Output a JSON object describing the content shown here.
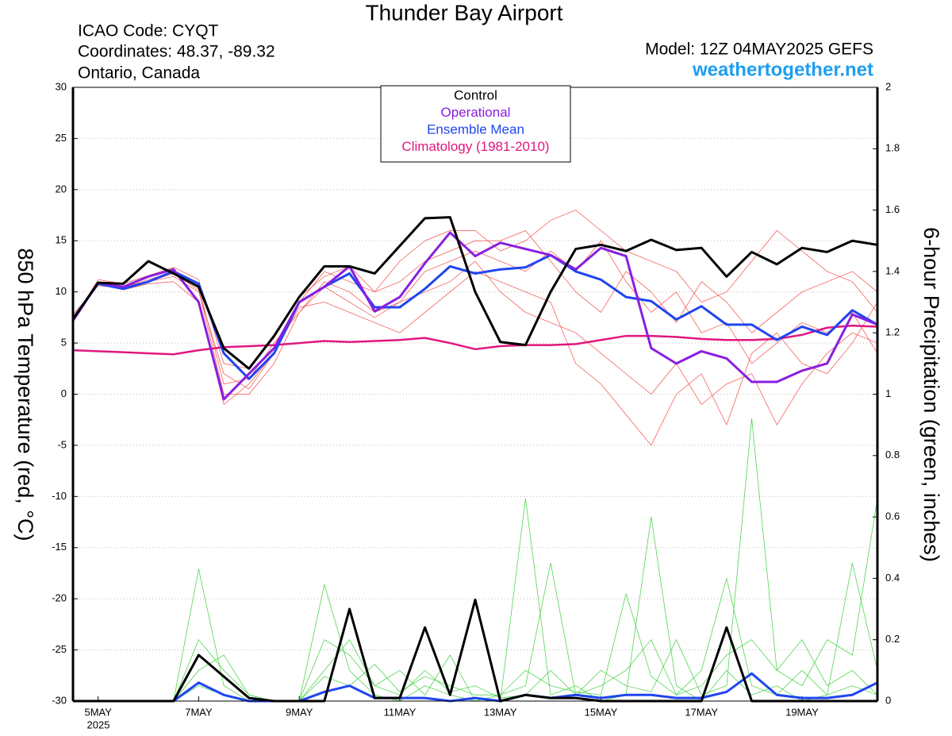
{
  "chart_data": {
    "type": "line",
    "title": "Thunder Bay Airport",
    "info": [
      "ICAO Code: CYQT",
      "Coordinates: 48.37, -89.32",
      "Ontario, Canada"
    ],
    "model": "Model: 12Z 04MAY2025 GEFS",
    "site": "weathertogether.net",
    "ylabel": "850 hPa Temperature (red, °C)",
    "y2label": "6-hour Precipitation (green, inches)",
    "year": "2025",
    "grid": true,
    "legend": "top",
    "xlim": [
      0,
      384
    ],
    "xticks": [
      {
        "value": 12,
        "label": "5MAY"
      },
      {
        "value": 60,
        "label": "7MAY"
      },
      {
        "value": 108,
        "label": "9MAY"
      },
      {
        "value": 156,
        "label": "11MAY"
      },
      {
        "value": 204,
        "label": "13MAY"
      },
      {
        "value": 252,
        "label": "15MAY"
      },
      {
        "value": 300,
        "label": "17MAY"
      },
      {
        "value": 348,
        "label": "19MAY"
      }
    ],
    "ylim": [
      -30,
      30
    ],
    "yticks": [
      30,
      25,
      20,
      15,
      10,
      5,
      0,
      -5,
      -10,
      -15,
      -20,
      -25,
      -30
    ],
    "y2lim": [
      0,
      2
    ],
    "y2ticks": [
      2,
      1.8,
      1.6,
      1.4,
      1.2,
      1,
      0.8,
      0.6,
      0.4,
      0.2,
      0
    ],
    "x": [
      0,
      12,
      24,
      36,
      48,
      60,
      72,
      84,
      96,
      108,
      120,
      132,
      144,
      156,
      168,
      180,
      192,
      204,
      216,
      228,
      240,
      252,
      264,
      276,
      288,
      300,
      312,
      324,
      336,
      348,
      360,
      372,
      384
    ],
    "series": [
      {
        "color": "#f0504a",
        "width": 0.7,
        "values": [
          7.5,
          11,
          10.5,
          11,
          11.5,
          10,
          2,
          0.5,
          4,
          9,
          12,
          11,
          10,
          13,
          15,
          16,
          16,
          14,
          15,
          17,
          18,
          16,
          14,
          13,
          12,
          9,
          10,
          13,
          16,
          14,
          12,
          11,
          8
        ]
      },
      {
        "color": "#f0504a",
        "width": 0.7,
        "values": [
          7.5,
          11,
          10.2,
          10.8,
          11,
          9,
          -1,
          1,
          4,
          8.5,
          9,
          8,
          7,
          6,
          8,
          10,
          12,
          11,
          10,
          9,
          3,
          1,
          -2,
          -5,
          0,
          2,
          -3,
          4,
          6,
          3,
          2,
          5,
          9
        ]
      },
      {
        "color": "#f0504a",
        "width": 0.7,
        "values": [
          7.8,
          10.6,
          10.4,
          11.2,
          12,
          10.5,
          1,
          1.5,
          5,
          8,
          11,
          10,
          8,
          9,
          12,
          13,
          14,
          13,
          12,
          14,
          12,
          15,
          11,
          8,
          10,
          6,
          7,
          3,
          5,
          7,
          6,
          8,
          4
        ]
      },
      {
        "color": "#f0504a",
        "width": 0.7,
        "values": [
          7.2,
          11.2,
          10.8,
          11.6,
          12.4,
          11.2,
          3,
          2.5,
          5.5,
          9.5,
          11.5,
          12.5,
          10,
          11,
          13,
          14,
          15,
          15,
          16,
          13,
          10,
          8,
          12,
          10,
          7,
          11,
          9,
          6,
          8,
          10,
          11,
          12,
          10
        ]
      },
      {
        "color": "#f0504a",
        "width": 0.7,
        "values": [
          7.6,
          10.8,
          10.6,
          11,
          11.8,
          10.2,
          0,
          0,
          3,
          8,
          10.5,
          9,
          7.5,
          9,
          10,
          11,
          13,
          10,
          8,
          7,
          6,
          4,
          2,
          0,
          3,
          -1,
          1,
          2,
          -3,
          1,
          4,
          6,
          5
        ]
      },
      {
        "color": "#3ccf3c",
        "width": 0.7,
        "axis": "y2",
        "values": [
          0,
          0,
          0,
          0,
          0,
          0.43,
          0.05,
          0,
          0,
          0,
          0.38,
          0.1,
          0.02,
          0,
          0.05,
          0.02,
          0,
          0,
          0.66,
          0.02,
          0.05,
          0,
          0.02,
          0.6,
          0.05,
          0,
          0.1,
          0.02,
          0.05,
          0,
          0.02,
          0.05,
          0.02
        ]
      },
      {
        "color": "#3ccf3c",
        "width": 0.7,
        "axis": "y2",
        "values": [
          0,
          0,
          0,
          0,
          0,
          0.2,
          0.1,
          0.02,
          0,
          0,
          0.2,
          0.15,
          0.05,
          0.1,
          0.02,
          0.15,
          0,
          0.02,
          0.05,
          0.45,
          0.02,
          0.1,
          0.05,
          0.03,
          0.2,
          0.02,
          0.05,
          0.92,
          0.1,
          0.2,
          0.05,
          0.1,
          0.02
        ]
      },
      {
        "color": "#3ccf3c",
        "width": 0.7,
        "axis": "y2",
        "values": [
          0,
          0,
          0,
          0,
          0,
          0.1,
          0.15,
          0.02,
          0,
          0,
          0.08,
          0.05,
          0.12,
          0.03,
          0.08,
          0.05,
          0.02,
          0.02,
          0.1,
          0.05,
          0.03,
          0.02,
          0.35,
          0.08,
          0.02,
          0.1,
          0.4,
          0.05,
          0.02,
          0.1,
          0.02,
          0.45,
          0.1
        ]
      },
      {
        "color": "#3ccf3c",
        "width": 0.7,
        "axis": "y2",
        "values": [
          0,
          0,
          0,
          0,
          0,
          0.05,
          0.02,
          0,
          0,
          0,
          0.1,
          0.2,
          0.05,
          0.02,
          0.1,
          0.03,
          0.05,
          0.01,
          0.02,
          0.1,
          0.02,
          0.05,
          0.1,
          0.2,
          0.02,
          0.05,
          0.15,
          0.2,
          0.1,
          0.05,
          0.2,
          0.15,
          0.66
        ]
      },
      {
        "name": "Climatology (1981-2010)",
        "color": "#e0177f",
        "width": 2.5,
        "values": [
          4.3,
          4.2,
          4.1,
          4.0,
          3.9,
          4.3,
          4.6,
          4.7,
          4.8,
          5.0,
          5.2,
          5.1,
          5.2,
          5.3,
          5.5,
          5.0,
          4.4,
          4.7,
          4.8,
          4.8,
          4.9,
          5.3,
          5.7,
          5.7,
          5.6,
          5.4,
          5.3,
          5.3,
          5.4,
          5.8,
          6.5,
          6.7,
          6.6
        ]
      },
      {
        "color": "#1f45f0",
        "width": 3,
        "axis": "y2",
        "values": [
          0,
          0,
          0,
          0,
          0,
          0.06,
          0.02,
          0,
          0,
          0,
          0.03,
          0.05,
          0.01,
          0.01,
          0.01,
          0,
          0.01,
          0,
          0.02,
          0.01,
          0.02,
          0.01,
          0.02,
          0.02,
          0.01,
          0.01,
          0.03,
          0.09,
          0.02,
          0.01,
          0.01,
          0.02,
          0.06
        ]
      },
      {
        "color": "#000000",
        "width": 3,
        "axis": "y2",
        "values": [
          0,
          0,
          0,
          0,
          0,
          0.15,
          0.08,
          0.01,
          0,
          0,
          0,
          0.3,
          0.01,
          0.01,
          0.24,
          0.02,
          0.33,
          0,
          0.02,
          0.01,
          0.01,
          0,
          0,
          0,
          0,
          0,
          0.24,
          0,
          0,
          0,
          0,
          0,
          0
        ]
      },
      {
        "name": "Ensemble Mean",
        "color": "#1f45f0",
        "width": 3,
        "values": [
          7.4,
          10.8,
          10.3,
          11.0,
          12.0,
          10.8,
          4.0,
          1.5,
          4.0,
          9.0,
          10.5,
          11.8,
          8.5,
          8.5,
          10.3,
          12.5,
          11.8,
          12.2,
          12.4,
          13.6,
          12.0,
          11.2,
          9.5,
          9.1,
          7.3,
          8.6,
          6.8,
          6.8,
          5.3,
          6.6,
          5.8,
          8.2,
          6.8
        ]
      },
      {
        "name": "Operational",
        "color": "#8a1ee0",
        "width": 3,
        "values": [
          7.2,
          10.9,
          10.5,
          11.5,
          12.2,
          9.0,
          -0.5,
          2.0,
          4.5,
          9.0,
          10.5,
          12.5,
          8.1,
          9.5,
          12.8,
          15.8,
          13.5,
          14.8,
          14.2,
          13.6,
          12.2,
          14.3,
          13.5,
          4.5,
          3.0,
          4.2,
          3.5,
          1.2,
          1.2,
          2.3,
          3.0,
          7.8,
          6.8
        ]
      },
      {
        "name": "Control",
        "color": "#000000",
        "width": 3,
        "values": [
          7.3,
          10.9,
          10.8,
          13.0,
          11.8,
          10.5,
          4.5,
          2.5,
          5.7,
          9.5,
          12.5,
          12.5,
          11.8,
          14.5,
          17.2,
          17.3,
          10.0,
          5.1,
          4.8,
          10.0,
          14.2,
          14.6,
          14.0,
          15.1,
          14.1,
          14.3,
          11.5,
          13.9,
          12.7,
          14.3,
          13.9,
          15.0,
          14.6
        ]
      }
    ]
  }
}
